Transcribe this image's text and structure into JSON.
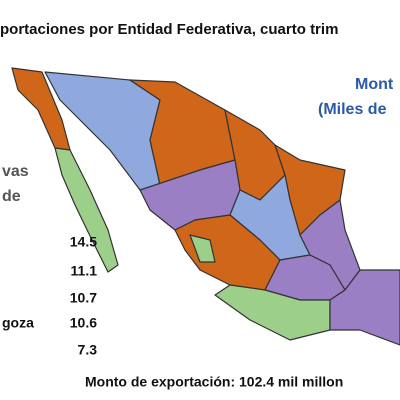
{
  "title": "portaciones por Entidad Federativa, cuarto trim",
  "legend_heading": [
    "Mont",
    "(Miles de"
  ],
  "left_heading": [
    "vas",
    "de"
  ],
  "ranking": [
    {
      "value": 14.5
    },
    {
      "value": 11.1
    },
    {
      "value": 10.7
    },
    {
      "label": "goza",
      "value": 10.6
    },
    {
      "value": 7.3
    }
  ],
  "footer": "Monto de exportación: 102.4 mil millon"
}
